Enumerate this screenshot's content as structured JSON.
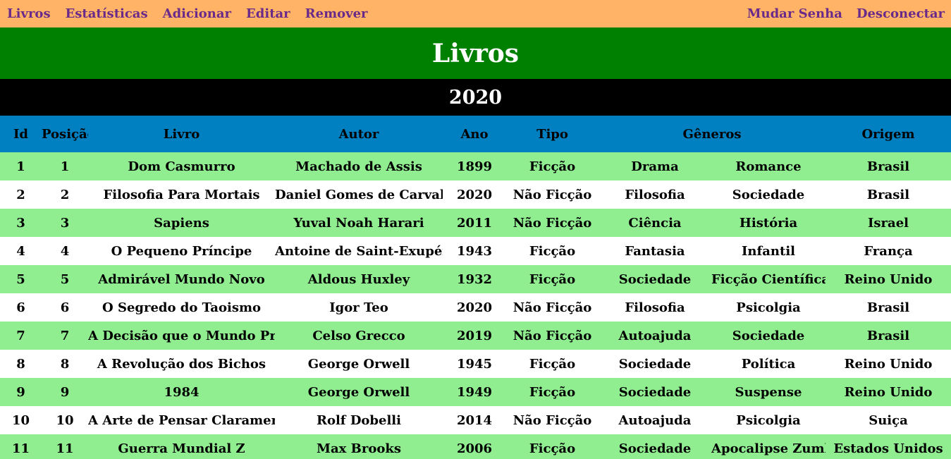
{
  "nav": {
    "left": [
      "Livros",
      "Estatísticas",
      "Adicionar",
      "Editar",
      "Remover"
    ],
    "right": [
      "Mudar Senha",
      "Desconectar"
    ]
  },
  "title": "Livros",
  "year": "2020",
  "table": {
    "headers": {
      "id": "Id",
      "posicao": "Posição",
      "livro": "Livro",
      "autor": "Autor",
      "ano": "Ano",
      "tipo": "Tipo",
      "generos": "Gêneros",
      "origem": "Origem"
    },
    "rows": [
      [
        "1",
        "1",
        "Dom Casmurro",
        "Machado de Assis",
        "1899",
        "Ficção",
        "Drama",
        "Romance",
        "Brasil"
      ],
      [
        "2",
        "2",
        "Filosofia Para Mortais",
        "Daniel Gomes de Carvalho",
        "2020",
        "Não Ficção",
        "Filosofia",
        "Sociedade",
        "Brasil"
      ],
      [
        "3",
        "3",
        "Sapiens",
        "Yuval Noah Harari",
        "2011",
        "Não Ficção",
        "Ciência",
        "História",
        "Israel"
      ],
      [
        "4",
        "4",
        "O Pequeno Príncipe",
        "Antoine de Saint-Exupéry",
        "1943",
        "Ficção",
        "Fantasia",
        "Infantil",
        "França"
      ],
      [
        "5",
        "5",
        "Admirável Mundo Novo",
        "Aldous Huxley",
        "1932",
        "Ficção",
        "Sociedade",
        "Ficção Científica",
        "Reino Unido"
      ],
      [
        "6",
        "6",
        "O Segredo do Taoismo",
        "Igor Teo",
        "2020",
        "Não Ficção",
        "Filosofia",
        "Psicolgia",
        "Brasil"
      ],
      [
        "7",
        "7",
        "A Decisão que o Mundo Precisa",
        "Celso Grecco",
        "2019",
        "Não Ficção",
        "Autoajuda",
        "Sociedade",
        "Brasil"
      ],
      [
        "8",
        "8",
        "A Revolução dos Bichos",
        "George Orwell",
        "1945",
        "Ficção",
        "Sociedade",
        "Política",
        "Reino Unido"
      ],
      [
        "9",
        "9",
        "1984",
        "George Orwell",
        "1949",
        "Ficção",
        "Sociedade",
        "Suspense",
        "Reino Unido"
      ],
      [
        "10",
        "10",
        "A Arte de Pensar Claramente",
        "Rolf Dobelli",
        "2014",
        "Não Ficção",
        "Autoajuda",
        "Psicolgia",
        "Suiça"
      ],
      [
        "11",
        "11",
        "Guerra Mundial Z",
        "Max Brooks",
        "2006",
        "Ficção",
        "Sociedade",
        "Apocalipse Zumbi",
        "Estados Unidos"
      ]
    ]
  }
}
